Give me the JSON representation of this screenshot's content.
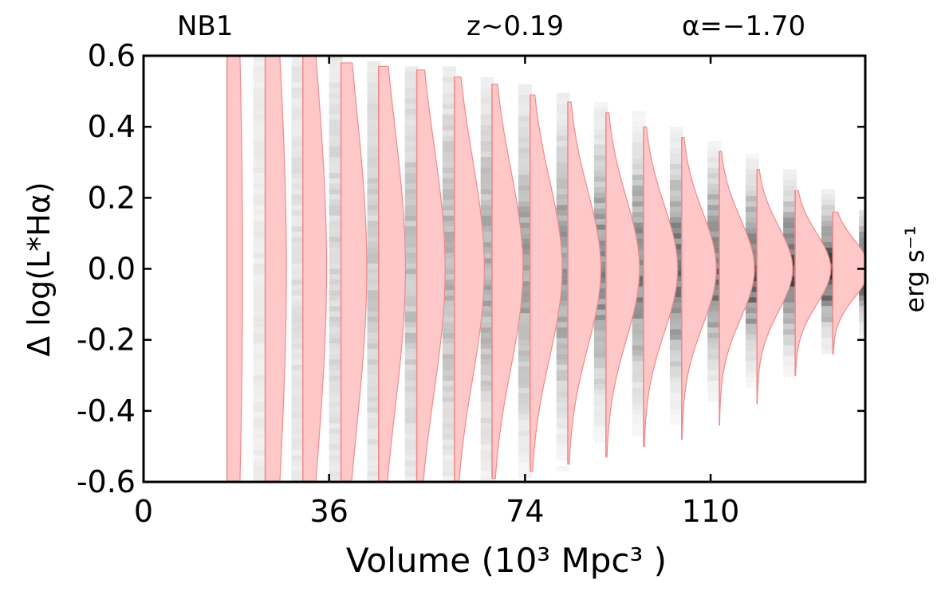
{
  "chart_data": {
    "type": "violin",
    "annotations": {
      "left": "NB1",
      "middle": "z~0.19",
      "right": "α=−1.70"
    },
    "xlabel": "Volume (10³ Mpc³ )",
    "ylabel": "Δ log(L*Hα)",
    "ylabel_right": "erg s⁻¹",
    "xlim": [
      0,
      140
    ],
    "ylim": [
      -0.6,
      0.6
    ],
    "x_ticks": [
      0,
      36,
      74,
      110
    ],
    "x_tick_labels": [
      "0",
      "36",
      "74",
      "110"
    ],
    "y_ticks": [
      0.6,
      0.4,
      0.2,
      0.0,
      -0.2,
      -0.4,
      -0.6
    ],
    "y_tick_labels": [
      "0.6",
      "0.4",
      "0.2",
      "0.0",
      "-0.2",
      "-0.4",
      "-0.6"
    ],
    "grid": false,
    "colors": {
      "violin_fill": "#ffc8c8",
      "violin_edge": "#f08a8a",
      "bins": "#000000"
    },
    "columns": [
      {
        "volume": 22.6,
        "sigma": 1.0,
        "peak": 0.1,
        "upper": 0.6,
        "lower": -0.6,
        "violin_x": 16.2,
        "violin_width": 3.0,
        "shade": 0.1
      },
      {
        "volume": 30.0,
        "sigma": 0.7,
        "peak": 0.16,
        "upper": 0.6,
        "lower": -0.6,
        "violin_x": 23.6,
        "violin_width": 4.1,
        "shade": 0.15
      },
      {
        "volume": 37.3,
        "sigma": 0.55,
        "peak": 0.22,
        "upper": 0.6,
        "lower": -0.6,
        "violin_x": 30.9,
        "violin_width": 4.6,
        "shade": 0.2
      },
      {
        "volume": 44.7,
        "sigma": 0.45,
        "peak": 0.28,
        "upper": 0.58,
        "lower": -0.6,
        "violin_x": 38.3,
        "violin_width": 5.0,
        "shade": 0.25
      },
      {
        "volume": 52.0,
        "sigma": 0.4,
        "peak": 0.34,
        "upper": 0.57,
        "lower": -0.6,
        "violin_x": 45.6,
        "violin_width": 5.2,
        "shade": 0.3
      },
      {
        "volume": 59.3,
        "sigma": 0.35,
        "peak": 0.4,
        "upper": 0.56,
        "lower": -0.6,
        "violin_x": 53.0,
        "violin_width": 5.5,
        "shade": 0.35
      },
      {
        "volume": 66.7,
        "sigma": 0.31,
        "peak": 0.46,
        "upper": 0.54,
        "lower": -0.6,
        "violin_x": 60.3,
        "violin_width": 5.8,
        "shade": 0.4
      },
      {
        "volume": 74.0,
        "sigma": 0.28,
        "peak": 0.52,
        "upper": 0.52,
        "lower": -0.59,
        "violin_x": 67.6,
        "violin_width": 6.0,
        "shade": 0.45
      },
      {
        "volume": 81.4,
        "sigma": 0.25,
        "peak": 0.58,
        "upper": 0.49,
        "lower": -0.57,
        "violin_x": 75.0,
        "violin_width": 6.2,
        "shade": 0.5
      },
      {
        "volume": 88.7,
        "sigma": 0.22,
        "peak": 0.64,
        "upper": 0.47,
        "lower": -0.55,
        "violin_x": 82.3,
        "violin_width": 6.4,
        "shade": 0.55
      },
      {
        "volume": 96.1,
        "sigma": 0.2,
        "peak": 0.7,
        "upper": 0.44,
        "lower": -0.53,
        "violin_x": 89.7,
        "violin_width": 6.5,
        "shade": 0.6
      },
      {
        "volume": 103.4,
        "sigma": 0.18,
        "peak": 0.76,
        "upper": 0.4,
        "lower": -0.5,
        "violin_x": 97.0,
        "violin_width": 6.6,
        "shade": 0.65
      },
      {
        "volume": 110.7,
        "sigma": 0.16,
        "peak": 0.82,
        "upper": 0.37,
        "lower": -0.48,
        "violin_x": 104.4,
        "violin_width": 6.7,
        "shade": 0.7
      },
      {
        "volume": 118.1,
        "sigma": 0.14,
        "peak": 0.88,
        "upper": 0.33,
        "lower": -0.44,
        "violin_x": 111.7,
        "violin_width": 6.8,
        "shade": 0.75
      },
      {
        "volume": 125.4,
        "sigma": 0.12,
        "peak": 0.94,
        "upper": 0.28,
        "lower": -0.38,
        "violin_x": 119.0,
        "violin_width": 6.9,
        "shade": 0.8
      },
      {
        "volume": 132.8,
        "sigma": 0.1,
        "peak": 1.0,
        "upper": 0.22,
        "lower": -0.3,
        "violin_x": 126.4,
        "violin_width": 6.9,
        "shade": 0.85
      },
      {
        "volume": 140.1,
        "sigma": 0.08,
        "peak": 1.0,
        "upper": 0.16,
        "lower": -0.24,
        "violin_x": 133.7,
        "violin_width": 7.0,
        "shade": 0.9
      }
    ]
  }
}
